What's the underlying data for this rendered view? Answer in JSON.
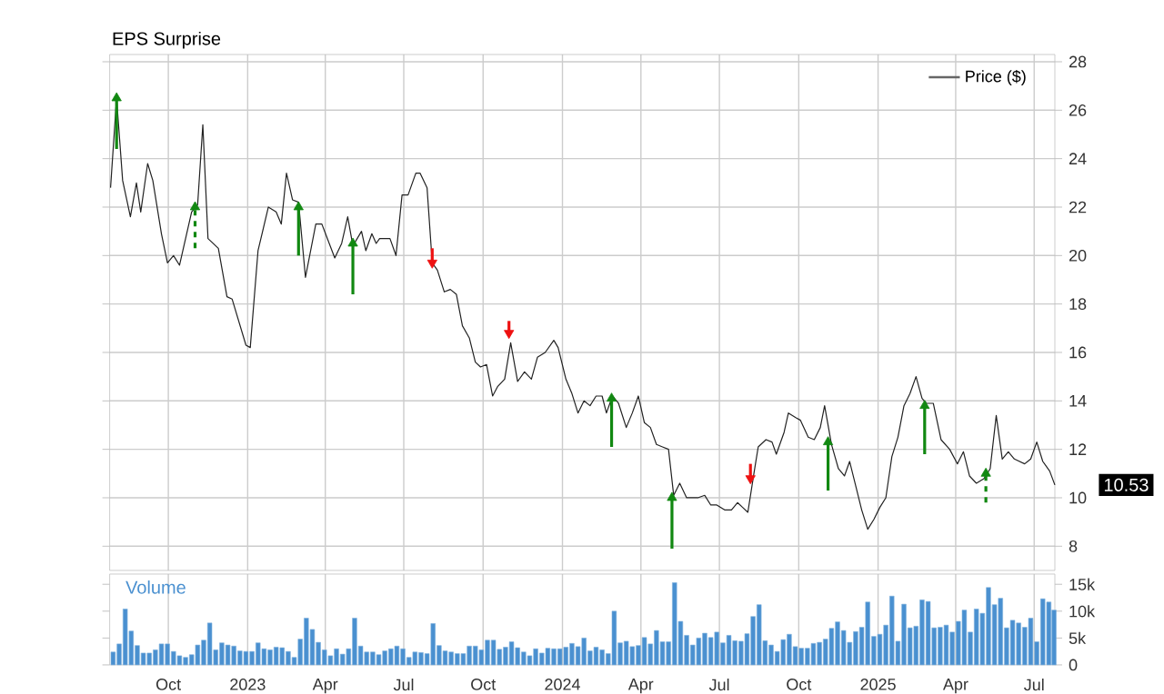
{
  "chart_data": [
    {
      "type": "line",
      "title": "EPS Surprise",
      "xlim": [
        "2022-07-25",
        "2025-07-25"
      ],
      "ylim": [
        7.0,
        28.3
      ],
      "xticks": [
        {
          "value": "2022-10-01",
          "label": null
        },
        {
          "value": "2023-01-01",
          "label": null
        },
        {
          "value": "2023-04-01",
          "label": null
        },
        {
          "value": "2023-07-01",
          "label": null
        },
        {
          "value": "2023-10-01",
          "label": null
        },
        {
          "value": "2024-01-01",
          "label": null
        },
        {
          "value": "2024-04-01",
          "label": null
        },
        {
          "value": "2024-07-01",
          "label": null
        },
        {
          "value": "2024-10-01",
          "label": null
        },
        {
          "value": "2025-01-01",
          "label": null
        },
        {
          "value": "2025-04-01",
          "label": null
        },
        {
          "value": "2025-07-01",
          "label": null
        }
      ],
      "yticks": [
        8,
        10,
        12,
        14,
        16,
        18,
        20,
        22,
        24,
        26,
        28
      ],
      "tick_labels": "y",
      "grid": true,
      "legend": "top right",
      "annotations": [
        {
          "text": "10.53",
          "x": "2025-07-25",
          "y": 10.53
        }
      ],
      "series": [
        {
          "name": "Price ($)",
          "color": "#222222",
          "x": [
            "2022-07-26",
            "2022-08-02",
            "2022-08-09",
            "2022-08-18",
            "2022-08-25",
            "2022-08-30",
            "2022-09-07",
            "2022-09-13",
            "2022-09-23",
            "2022-09-30",
            "2022-10-07",
            "2022-10-14",
            "2022-10-28",
            "2022-11-04",
            "2022-11-10",
            "2022-11-16",
            "2022-11-28",
            "2022-12-08",
            "2022-12-14",
            "2022-12-30",
            "2023-01-04",
            "2023-01-13",
            "2023-01-25",
            "2023-02-03",
            "2023-02-09",
            "2023-02-15",
            "2023-02-22",
            "2023-03-01",
            "2023-03-09",
            "2023-03-21",
            "2023-03-28",
            "2023-04-12",
            "2023-04-20",
            "2023-04-27",
            "2023-05-03",
            "2023-05-13",
            "2023-05-18",
            "2023-05-25",
            "2023-05-30",
            "2023-06-03",
            "2023-06-15",
            "2023-06-22",
            "2023-06-29",
            "2023-07-06",
            "2023-07-15",
            "2023-07-20",
            "2023-07-28",
            "2023-08-03",
            "2023-08-09",
            "2023-08-17",
            "2023-08-24",
            "2023-08-31",
            "2023-09-07",
            "2023-09-15",
            "2023-09-22",
            "2023-09-28",
            "2023-10-05",
            "2023-10-12",
            "2023-10-18",
            "2023-10-26",
            "2023-11-02",
            "2023-11-10",
            "2023-11-18",
            "2023-11-26",
            "2023-12-03",
            "2023-12-12",
            "2023-12-22",
            "2023-12-27",
            "2024-01-05",
            "2024-01-12",
            "2024-01-19",
            "2024-01-26",
            "2024-02-02",
            "2024-02-09",
            "2024-02-16",
            "2024-02-21",
            "2024-02-28",
            "2024-03-06",
            "2024-03-15",
            "2024-03-22",
            "2024-03-29",
            "2024-04-05",
            "2024-04-12",
            "2024-04-19",
            "2024-04-26",
            "2024-05-03",
            "2024-05-09",
            "2024-05-16",
            "2024-05-24",
            "2024-06-06",
            "2024-06-14",
            "2024-06-21",
            "2024-06-28",
            "2024-07-07",
            "2024-07-15",
            "2024-07-22",
            "2024-07-28",
            "2024-08-03",
            "2024-08-10",
            "2024-08-15",
            "2024-08-24",
            "2024-08-31",
            "2024-09-05",
            "2024-09-14",
            "2024-09-19",
            "2024-09-28",
            "2024-10-03",
            "2024-10-12",
            "2024-10-19",
            "2024-10-26",
            "2024-10-31",
            "2024-11-08",
            "2024-11-16",
            "2024-11-23",
            "2024-11-29",
            "2024-12-06",
            "2024-12-13",
            "2024-12-20",
            "2024-12-27",
            "2025-01-03",
            "2025-01-10",
            "2025-01-17",
            "2025-01-24",
            "2025-01-31",
            "2025-02-07",
            "2025-02-14",
            "2025-02-21",
            "2025-02-26",
            "2025-03-06",
            "2025-03-15",
            "2025-03-25",
            "2025-04-03",
            "2025-04-10",
            "2025-04-17",
            "2025-04-25",
            "2025-05-04",
            "2025-05-11",
            "2025-05-18",
            "2025-05-25",
            "2025-06-01",
            "2025-06-08",
            "2025-06-20",
            "2025-06-27",
            "2025-07-04",
            "2025-07-11",
            "2025-07-19",
            "2025-07-25"
          ],
          "values": [
            22.8,
            26.5,
            23.1,
            21.6,
            23.0,
            21.8,
            23.8,
            23.1,
            20.9,
            19.7,
            20.0,
            19.6,
            21.8,
            22.1,
            25.4,
            20.7,
            20.3,
            18.3,
            18.2,
            16.3,
            16.2,
            20.2,
            22.0,
            21.8,
            21.3,
            23.4,
            22.3,
            22.2,
            19.1,
            21.3,
            21.3,
            19.9,
            20.5,
            21.6,
            20.4,
            21.0,
            20.2,
            20.9,
            20.5,
            20.7,
            20.7,
            20.0,
            22.5,
            22.5,
            23.4,
            23.4,
            22.8,
            19.7,
            19.4,
            18.5,
            18.6,
            18.4,
            17.1,
            16.6,
            15.6,
            15.4,
            15.5,
            14.2,
            14.6,
            14.9,
            16.4,
            14.8,
            15.2,
            14.9,
            15.8,
            16.0,
            16.5,
            16.2,
            14.9,
            14.3,
            13.5,
            14.0,
            13.8,
            14.2,
            14.2,
            13.5,
            14.2,
            13.9,
            12.9,
            13.5,
            14.2,
            13.1,
            12.9,
            12.2,
            12.1,
            12.0,
            10.1,
            10.6,
            10.0,
            10.0,
            10.1,
            9.7,
            9.7,
            9.5,
            9.5,
            9.8,
            9.6,
            9.4,
            11.0,
            12.1,
            12.4,
            12.3,
            11.8,
            12.7,
            13.5,
            13.3,
            13.2,
            12.5,
            12.4,
            12.9,
            13.8,
            12.2,
            11.2,
            10.9,
            11.5,
            10.5,
            9.5,
            8.7,
            9.1,
            9.6,
            10.0,
            11.7,
            12.5,
            13.8,
            14.3,
            15.0,
            14.1,
            13.9,
            13.9,
            12.4,
            12.0,
            11.4,
            11.9,
            10.9,
            10.6,
            10.8,
            11.2,
            13.4,
            11.6,
            11.9,
            11.6,
            11.4,
            11.6,
            12.3,
            11.5,
            11.1,
            10.53
          ]
        },
        {
          "type": "scatter",
          "color": "#118811",
          "marker": "triangle",
          "x": [
            "2022-08-02",
            "2023-03-01",
            "2023-05-03",
            "2024-02-27",
            "2024-05-07",
            "2024-11-04",
            "2025-02-24"
          ],
          "values": [
            26.5,
            22.0,
            20.5,
            14.1,
            10.0,
            12.3,
            13.8
          ],
          "errors": [
            [
              24.4,
              26.5
            ],
            [
              20.0,
              22.0
            ],
            [
              18.4,
              20.5
            ],
            [
              12.1,
              14.1
            ],
            [
              7.9,
              10.0
            ],
            [
              10.3,
              12.3
            ],
            [
              11.8,
              13.8
            ]
          ]
        },
        {
          "type": "scatter",
          "color": "#118811",
          "marker": "triangle",
          "line_style": "dashed",
          "x": [
            "2022-11-01",
            "2025-05-06"
          ],
          "values": [
            22.0,
            11.0
          ],
          "errors": [
            [
              20.3,
              22.0
            ],
            [
              9.8,
              11.0
            ]
          ]
        },
        {
          "type": "scatter",
          "color": "#ee1111",
          "marker": "triangle",
          "x": [
            "2023-08-03",
            "2023-10-31",
            "2024-08-06"
          ],
          "values": [
            19.7,
            16.8,
            10.8
          ],
          "errors": [
            [
              19.7,
              20.3
            ],
            [
              16.8,
              17.3
            ],
            [
              10.8,
              11.4
            ]
          ]
        }
      ]
    },
    {
      "type": "bar",
      "title": "Volume",
      "xlim": [
        "2022-07-25",
        "2025-07-25"
      ],
      "ylim": [
        0,
        16900
      ],
      "xticks": [
        {
          "value": "2022-10-01",
          "label": "Oct"
        },
        {
          "value": "2023-01-01",
          "label": "2023"
        },
        {
          "value": "2023-04-01",
          "label": "Apr"
        },
        {
          "value": "2023-07-01",
          "label": "Jul"
        },
        {
          "value": "2023-10-01",
          "label": "Oct"
        },
        {
          "value": "2024-01-01",
          "label": "2024"
        },
        {
          "value": "2024-04-01",
          "label": "Apr"
        },
        {
          "value": "2024-07-01",
          "label": "Jul"
        },
        {
          "value": "2024-10-01",
          "label": "Oct"
        },
        {
          "value": "2025-01-01",
          "label": "2025"
        },
        {
          "value": "2025-04-01",
          "label": "Apr"
        },
        {
          "value": "2025-07-01",
          "label": "Jul"
        }
      ],
      "yticks": [
        0,
        {
          "value": 5000,
          "label": "5k"
        },
        {
          "value": 10000,
          "label": "10k"
        },
        {
          "value": 15000,
          "label": "15k"
        }
      ],
      "grid": "x",
      "x": [
        "2022-07-29",
        "2022-08-05",
        "2022-08-12",
        "2022-08-19",
        "2022-08-26",
        "2022-09-02",
        "2022-09-09",
        "2022-09-16",
        "2022-09-23",
        "2022-09-30",
        "2022-10-07",
        "2022-10-14",
        "2022-10-21",
        "2022-10-28",
        "2022-11-04",
        "2022-11-11",
        "2022-11-18",
        "2022-11-25",
        "2022-12-02",
        "2022-12-09",
        "2022-12-16",
        "2022-12-23",
        "2022-12-30",
        "2023-01-06",
        "2023-01-13",
        "2023-01-20",
        "2023-01-27",
        "2023-02-03",
        "2023-02-10",
        "2023-02-17",
        "2023-02-24",
        "2023-03-03",
        "2023-03-10",
        "2023-03-17",
        "2023-03-24",
        "2023-03-31",
        "2023-04-07",
        "2023-04-14",
        "2023-04-21",
        "2023-04-28",
        "2023-05-05",
        "2023-05-12",
        "2023-05-19",
        "2023-05-26",
        "2023-06-02",
        "2023-06-09",
        "2023-06-16",
        "2023-06-23",
        "2023-06-30",
        "2023-07-07",
        "2023-07-14",
        "2023-07-21",
        "2023-07-28",
        "2023-08-04",
        "2023-08-11",
        "2023-08-18",
        "2023-08-25",
        "2023-09-01",
        "2023-09-08",
        "2023-09-15",
        "2023-09-22",
        "2023-09-29",
        "2023-10-06",
        "2023-10-13",
        "2023-10-20",
        "2023-10-27",
        "2023-11-03",
        "2023-11-10",
        "2023-11-17",
        "2023-11-24",
        "2023-12-01",
        "2023-12-08",
        "2023-12-15",
        "2023-12-22",
        "2023-12-29",
        "2024-01-05",
        "2024-01-12",
        "2024-01-19",
        "2024-01-26",
        "2024-02-02",
        "2024-02-09",
        "2024-02-16",
        "2024-02-23",
        "2024-03-01",
        "2024-03-08",
        "2024-03-15",
        "2024-03-22",
        "2024-03-29",
        "2024-04-05",
        "2024-04-12",
        "2024-04-19",
        "2024-04-26",
        "2024-05-03",
        "2024-05-10",
        "2024-05-17",
        "2024-05-24",
        "2024-05-31",
        "2024-06-07",
        "2024-06-14",
        "2024-06-21",
        "2024-06-28",
        "2024-07-05",
        "2024-07-12",
        "2024-07-19",
        "2024-07-26",
        "2024-08-02",
        "2024-08-09",
        "2024-08-16",
        "2024-08-23",
        "2024-08-30",
        "2024-09-06",
        "2024-09-13",
        "2024-09-20",
        "2024-09-27",
        "2024-10-04",
        "2024-10-11",
        "2024-10-18",
        "2024-10-25",
        "2024-11-01",
        "2024-11-08",
        "2024-11-15",
        "2024-11-22",
        "2024-11-29",
        "2024-12-06",
        "2024-12-13",
        "2024-12-20",
        "2024-12-27",
        "2025-01-03",
        "2025-01-10",
        "2025-01-17",
        "2025-01-24",
        "2025-01-31",
        "2025-02-07",
        "2025-02-14",
        "2025-02-21",
        "2025-02-28",
        "2025-03-07",
        "2025-03-14",
        "2025-03-21",
        "2025-03-28",
        "2025-04-04",
        "2025-04-11",
        "2025-04-18",
        "2025-04-25",
        "2025-05-02",
        "2025-05-09",
        "2025-05-16",
        "2025-05-23",
        "2025-05-30",
        "2025-06-06",
        "2025-06-13",
        "2025-06-20",
        "2025-06-27",
        "2025-07-04",
        "2025-07-11",
        "2025-07-18",
        "2025-07-24"
      ],
      "series": [
        {
          "color": "#4a90d0",
          "values": [
            2400,
            3900,
            10400,
            6300,
            3600,
            2200,
            2200,
            2800,
            3900,
            3900,
            2500,
            1700,
            1400,
            1900,
            3700,
            4600,
            7800,
            2800,
            4100,
            3700,
            3500,
            2600,
            2500,
            2500,
            4100,
            3000,
            2800,
            3300,
            3200,
            2500,
            1400,
            4800,
            8700,
            6600,
            4200,
            2800,
            1700,
            3000,
            2000,
            3000,
            8700,
            3500,
            2400,
            2400,
            1900,
            2600,
            3000,
            3500,
            3000,
            1400,
            2400,
            2300,
            2100,
            7700,
            3600,
            2600,
            2400,
            2100,
            2100,
            3500,
            3500,
            2800,
            4600,
            4600,
            2900,
            3300,
            4300,
            3200,
            2400,
            1700,
            3000,
            2200,
            3100,
            3000,
            3000,
            3300,
            4000,
            3400,
            5000,
            2600,
            3300,
            2800,
            2100,
            10000,
            4100,
            4400,
            3400,
            3600,
            5100,
            3900,
            6400,
            4300,
            4300,
            15300,
            8100,
            5500,
            3700,
            5000,
            5900,
            5100,
            6100,
            4100,
            5500,
            4500,
            4400,
            5800,
            9000,
            11200,
            4500,
            3700,
            2500,
            4700,
            5700,
            3400,
            3100,
            3100,
            4000,
            4200,
            4800,
            6800,
            8000,
            6400,
            4200,
            6200,
            7000,
            11700,
            5300,
            5700,
            7400,
            12800,
            4400,
            11300,
            6900,
            7200,
            12100,
            11800,
            6900,
            7000,
            7400,
            6100,
            8100,
            10200,
            6100,
            10400,
            9600,
            14400,
            11200,
            12400,
            6900,
            8300,
            7800,
            7000,
            8700,
            4300,
            12300,
            11700,
            10200
          ]
        }
      ]
    }
  ]
}
